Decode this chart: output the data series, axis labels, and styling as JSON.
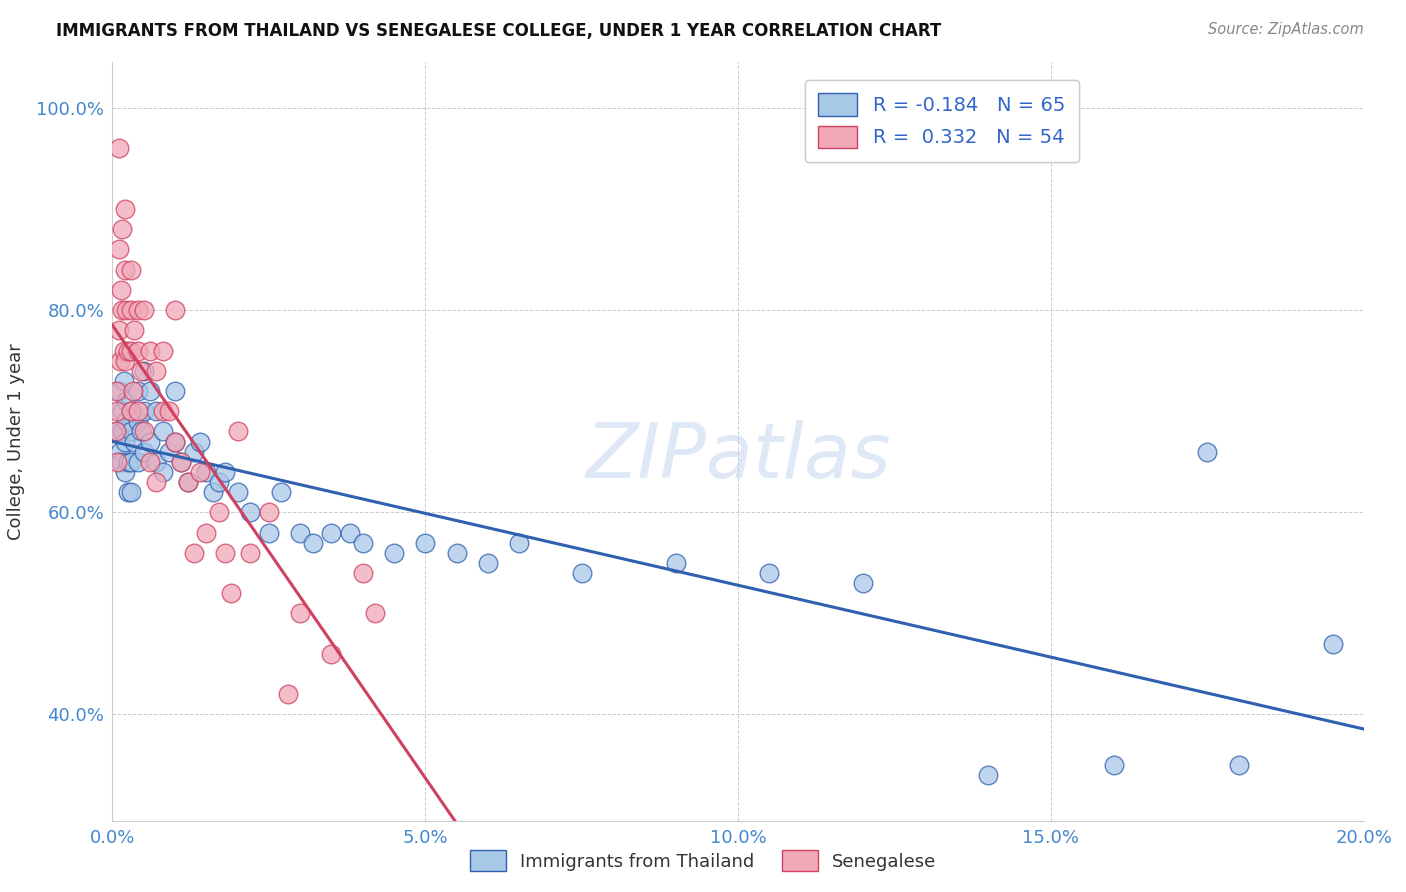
{
  "title": "IMMIGRANTS FROM THAILAND VS SENEGALESE COLLEGE, UNDER 1 YEAR CORRELATION CHART",
  "source": "Source: ZipAtlas.com",
  "ylabel": "College, Under 1 year",
  "legend_label1": "Immigrants from Thailand",
  "legend_label2": "Senegalese",
  "r1": -0.184,
  "n1": 65,
  "r2": 0.332,
  "n2": 54,
  "xlim": [
    0.0,
    0.2
  ],
  "ylim": [
    0.295,
    1.045
  ],
  "xticks": [
    0.0,
    0.05,
    0.1,
    0.15,
    0.2
  ],
  "yticks": [
    0.4,
    0.6,
    0.8,
    1.0
  ],
  "color1": "#a8c8e8",
  "color2": "#f0a8b8",
  "line1_color": "#3060b0",
  "line2_color": "#d04060",
  "watermark": "ZIPatlas",
  "blue_points_x": [
    0.0008,
    0.001,
    0.0012,
    0.0014,
    0.0015,
    0.0016,
    0.0018,
    0.002,
    0.002,
    0.0022,
    0.0022,
    0.0025,
    0.0025,
    0.003,
    0.003,
    0.003,
    0.003,
    0.0035,
    0.004,
    0.004,
    0.004,
    0.0045,
    0.005,
    0.005,
    0.005,
    0.006,
    0.006,
    0.007,
    0.007,
    0.008,
    0.008,
    0.009,
    0.01,
    0.01,
    0.011,
    0.012,
    0.013,
    0.014,
    0.015,
    0.016,
    0.017,
    0.018,
    0.02,
    0.022,
    0.025,
    0.027,
    0.03,
    0.032,
    0.035,
    0.038,
    0.04,
    0.045,
    0.05,
    0.055,
    0.06,
    0.065,
    0.075,
    0.09,
    0.105,
    0.12,
    0.14,
    0.16,
    0.175,
    0.18,
    0.195
  ],
  "blue_points_y": [
    0.68,
    0.72,
    0.66,
    0.65,
    0.7,
    0.68,
    0.73,
    0.67,
    0.64,
    0.71,
    0.69,
    0.65,
    0.62,
    0.7,
    0.68,
    0.65,
    0.62,
    0.67,
    0.72,
    0.69,
    0.65,
    0.68,
    0.74,
    0.7,
    0.66,
    0.72,
    0.67,
    0.7,
    0.65,
    0.68,
    0.64,
    0.66,
    0.72,
    0.67,
    0.65,
    0.63,
    0.66,
    0.67,
    0.64,
    0.62,
    0.63,
    0.64,
    0.62,
    0.6,
    0.58,
    0.62,
    0.58,
    0.57,
    0.58,
    0.58,
    0.57,
    0.56,
    0.57,
    0.56,
    0.55,
    0.57,
    0.54,
    0.55,
    0.54,
    0.53,
    0.34,
    0.35,
    0.66,
    0.35,
    0.47
  ],
  "pink_points_x": [
    0.0005,
    0.0006,
    0.0007,
    0.0008,
    0.001,
    0.001,
    0.001,
    0.0012,
    0.0014,
    0.0015,
    0.0016,
    0.0018,
    0.002,
    0.002,
    0.002,
    0.0022,
    0.0025,
    0.003,
    0.003,
    0.003,
    0.003,
    0.0032,
    0.0035,
    0.004,
    0.004,
    0.004,
    0.0045,
    0.005,
    0.005,
    0.006,
    0.006,
    0.007,
    0.007,
    0.008,
    0.008,
    0.009,
    0.01,
    0.01,
    0.011,
    0.012,
    0.013,
    0.014,
    0.015,
    0.017,
    0.018,
    0.019,
    0.02,
    0.022,
    0.025,
    0.028,
    0.03,
    0.035,
    0.04,
    0.042
  ],
  "pink_points_y": [
    0.68,
    0.72,
    0.7,
    0.65,
    0.96,
    0.86,
    0.78,
    0.75,
    0.82,
    0.88,
    0.8,
    0.76,
    0.9,
    0.84,
    0.75,
    0.8,
    0.76,
    0.84,
    0.8,
    0.76,
    0.7,
    0.72,
    0.78,
    0.8,
    0.76,
    0.7,
    0.74,
    0.8,
    0.68,
    0.76,
    0.65,
    0.74,
    0.63,
    0.76,
    0.7,
    0.7,
    0.8,
    0.67,
    0.65,
    0.63,
    0.56,
    0.64,
    0.58,
    0.6,
    0.56,
    0.52,
    0.68,
    0.56,
    0.6,
    0.42,
    0.5,
    0.46,
    0.54,
    0.5
  ]
}
